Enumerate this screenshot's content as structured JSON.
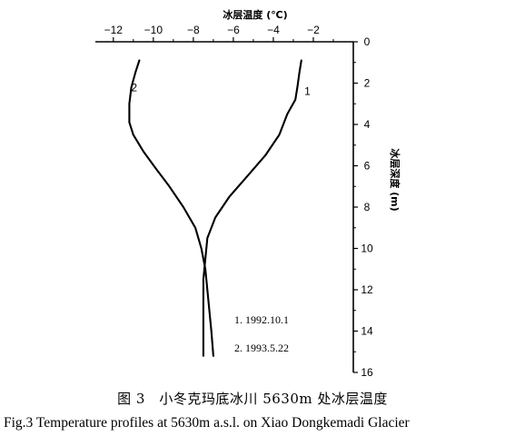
{
  "chart_data": {
    "type": "line",
    "title": "",
    "xlabel": "冰层温度 (℃)",
    "ylabel": "冰层深度 (m)",
    "x_axis_position": "top",
    "y_axis_position": "right",
    "y_inverted": true,
    "xlim": [
      -12.9,
      0
    ],
    "ylim": [
      0,
      16
    ],
    "x_ticks": [
      -12,
      -10,
      -8,
      -6,
      -4,
      -2
    ],
    "y_ticks": [
      0,
      2,
      4,
      6,
      8,
      10,
      12,
      14,
      16
    ],
    "grid": false,
    "series": [
      {
        "name": "1",
        "legend": "1.  1992.10.1",
        "x": [
          -2.6,
          -2.7,
          -2.8,
          -2.9,
          -3.3,
          -3.7,
          -4.4,
          -5.3,
          -6.2,
          -6.9,
          -7.3,
          -7.4,
          -7.5,
          -7.5,
          -7.5,
          -7.5
        ],
        "y": [
          0.9,
          1.5,
          2.2,
          2.8,
          3.5,
          4.5,
          5.5,
          6.5,
          7.5,
          8.5,
          9.5,
          10.5,
          11.5,
          12.5,
          13.5,
          15.2
        ]
      },
      {
        "name": "2",
        "legend": "2.  1993.5.22",
        "x": [
          -10.7,
          -10.9,
          -11.1,
          -11.2,
          -11.2,
          -11.0,
          -10.5,
          -9.9,
          -9.2,
          -8.5,
          -7.9,
          -7.6,
          -7.4,
          -7.3,
          -7.2,
          -7.1,
          -7.0
        ],
        "y": [
          0.9,
          1.5,
          2.2,
          3.0,
          3.9,
          4.5,
          5.3,
          6.1,
          7.0,
          8.0,
          9.0,
          10.0,
          11.0,
          12.0,
          13.0,
          14.0,
          15.2
        ]
      }
    ]
  },
  "caption": {
    "cn": "图 3　小冬克玛底冰川 5630m 处冰层温度",
    "en": "Fig.3    Temperature profiles at 5630m a.s.l. on Xiao Dongkemadi Glacier"
  }
}
